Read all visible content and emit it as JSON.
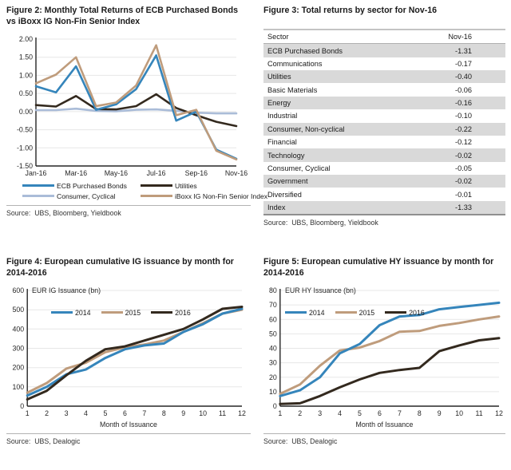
{
  "colors": {
    "blue": "#3585bb",
    "tan": "#bf9c7c",
    "dark": "#33291e",
    "lightblue": "#aabcd8",
    "grid": "#e7e7e7",
    "axis": "#262626",
    "row_shade": "#d9d9d9"
  },
  "chart_data": [
    {
      "id": "figure2",
      "type": "line",
      "title": "Figure 2: Monthly Total Returns of ECB Purchased Bonds\nvs iBoxx IG Non-Fin Senior Index",
      "source": "Source:  UBS, Bloomberg, Yieldbook",
      "x": [
        "Jan-16",
        "Feb-16",
        "Mar-16",
        "Apr-16",
        "May-16",
        "Jun-16",
        "Jul-16",
        "Aug-16",
        "Sep-16",
        "Oct-16",
        "Nov-16"
      ],
      "x_tick_every": 2,
      "ylim": [
        -1.5,
        2.0
      ],
      "ytick_step": 0.5,
      "ytick_decimals": 2,
      "grid": true,
      "legend_position": "below",
      "draw_order": [
        2,
        1,
        0,
        3
      ],
      "series": [
        {
          "name": "ECB Purchased Bonds",
          "color": "blue",
          "values": [
            0.7,
            0.53,
            1.25,
            0.05,
            0.2,
            0.62,
            1.55,
            -0.25,
            0.0,
            -1.05,
            -1.3
          ]
        },
        {
          "name": "Utilities",
          "color": "dark",
          "values": [
            0.18,
            0.14,
            0.43,
            0.07,
            0.06,
            0.15,
            0.48,
            0.1,
            -0.1,
            -0.28,
            -0.4
          ]
        },
        {
          "name": "Consumer, Cyclical",
          "color": "lightblue",
          "values": [
            0.04,
            0.04,
            0.08,
            0.02,
            0.01,
            0.05,
            0.06,
            0.02,
            -0.03,
            -0.05,
            -0.05
          ]
        },
        {
          "name": "iBoxx IG Non-Fin Senior Index",
          "color": "tan",
          "values": [
            0.78,
            1.02,
            1.5,
            0.15,
            0.25,
            0.72,
            1.83,
            -0.1,
            0.05,
            -1.08,
            -1.32
          ]
        }
      ]
    },
    {
      "id": "figure3",
      "type": "table",
      "title": "Figure 3: Total returns by sector for Nov-16",
      "source": "Source:  UBS, Bloomberg, Yieldbook",
      "headers": [
        "Sector",
        "Nov-16"
      ],
      "rows": [
        [
          "ECB Purchased Bonds",
          "-1.31"
        ],
        [
          "Communications",
          "-0.17"
        ],
        [
          "Utilities",
          "-0.40"
        ],
        [
          "Basic Materials",
          "-0.06"
        ],
        [
          "Energy",
          "-0.16"
        ],
        [
          "Industrial",
          "-0.10"
        ],
        [
          "Consumer, Non-cyclical",
          "-0.22"
        ],
        [
          "Financial",
          "-0.12"
        ],
        [
          "Technology",
          "-0.02"
        ],
        [
          "Consumer, Cyclical",
          "-0.05"
        ],
        [
          "Government",
          "-0.02"
        ],
        [
          "Diversified",
          "-0.01"
        ],
        [
          "Index",
          "-1.33"
        ]
      ]
    },
    {
      "id": "figure4",
      "type": "line",
      "title": "Figure 4: European cumulative IG issuance by month for\n2014-2016",
      "ylabel": "EUR IG Issuance (bn)",
      "xlabel": "Month of Issuance",
      "source": "Source:  UBS, Dealogic",
      "x": [
        "1",
        "2",
        "3",
        "4",
        "5",
        "6",
        "7",
        "8",
        "9",
        "10",
        "11",
        "12"
      ],
      "ylim": [
        0,
        600
      ],
      "ytick_step": 100,
      "ytick_decimals": 0,
      "grid": true,
      "legend_position": "inside-top",
      "draw_order": [
        1,
        0,
        2
      ],
      "series": [
        {
          "name": "2014",
          "color": "blue",
          "values": [
            55,
            100,
            165,
            190,
            250,
            295,
            315,
            325,
            385,
            425,
            480,
            505
          ]
        },
        {
          "name": "2015",
          "color": "tan",
          "values": [
            70,
            120,
            195,
            225,
            280,
            305,
            320,
            340,
            385,
            430,
            480,
            500
          ]
        },
        {
          "name": "2016",
          "color": "dark",
          "values": [
            35,
            80,
            160,
            235,
            295,
            310,
            340,
            370,
            400,
            450,
            505,
            515
          ]
        }
      ]
    },
    {
      "id": "figure5",
      "type": "line",
      "title": "Figure 5: European cumulative HY issuance by month for\n2014-2016",
      "ylabel": "EUR HY Issuance (bn)",
      "xlabel": "Month of Issuance",
      "source": "Source:  UBS, Dealogic",
      "x": [
        "1",
        "2",
        "3",
        "4",
        "5",
        "6",
        "7",
        "8",
        "9",
        "10",
        "11",
        "12"
      ],
      "ylim": [
        0,
        80
      ],
      "ytick_step": 10,
      "ytick_decimals": 0,
      "grid": true,
      "legend_position": "inside-top",
      "draw_order": [
        1,
        0,
        2
      ],
      "series": [
        {
          "name": "2014",
          "color": "blue",
          "values": [
            7,
            11,
            20,
            36.5,
            43,
            56,
            62,
            63,
            67,
            68.5,
            70,
            71.5
          ]
        },
        {
          "name": "2015",
          "color": "tan",
          "values": [
            8.5,
            15,
            28,
            38.5,
            40.5,
            45,
            51.5,
            52,
            55.5,
            57.5,
            60,
            62
          ]
        },
        {
          "name": "2016",
          "color": "dark",
          "values": [
            1.5,
            2,
            7,
            13,
            18.5,
            23,
            25,
            26.5,
            38,
            42,
            45.5,
            47
          ]
        }
      ]
    }
  ]
}
